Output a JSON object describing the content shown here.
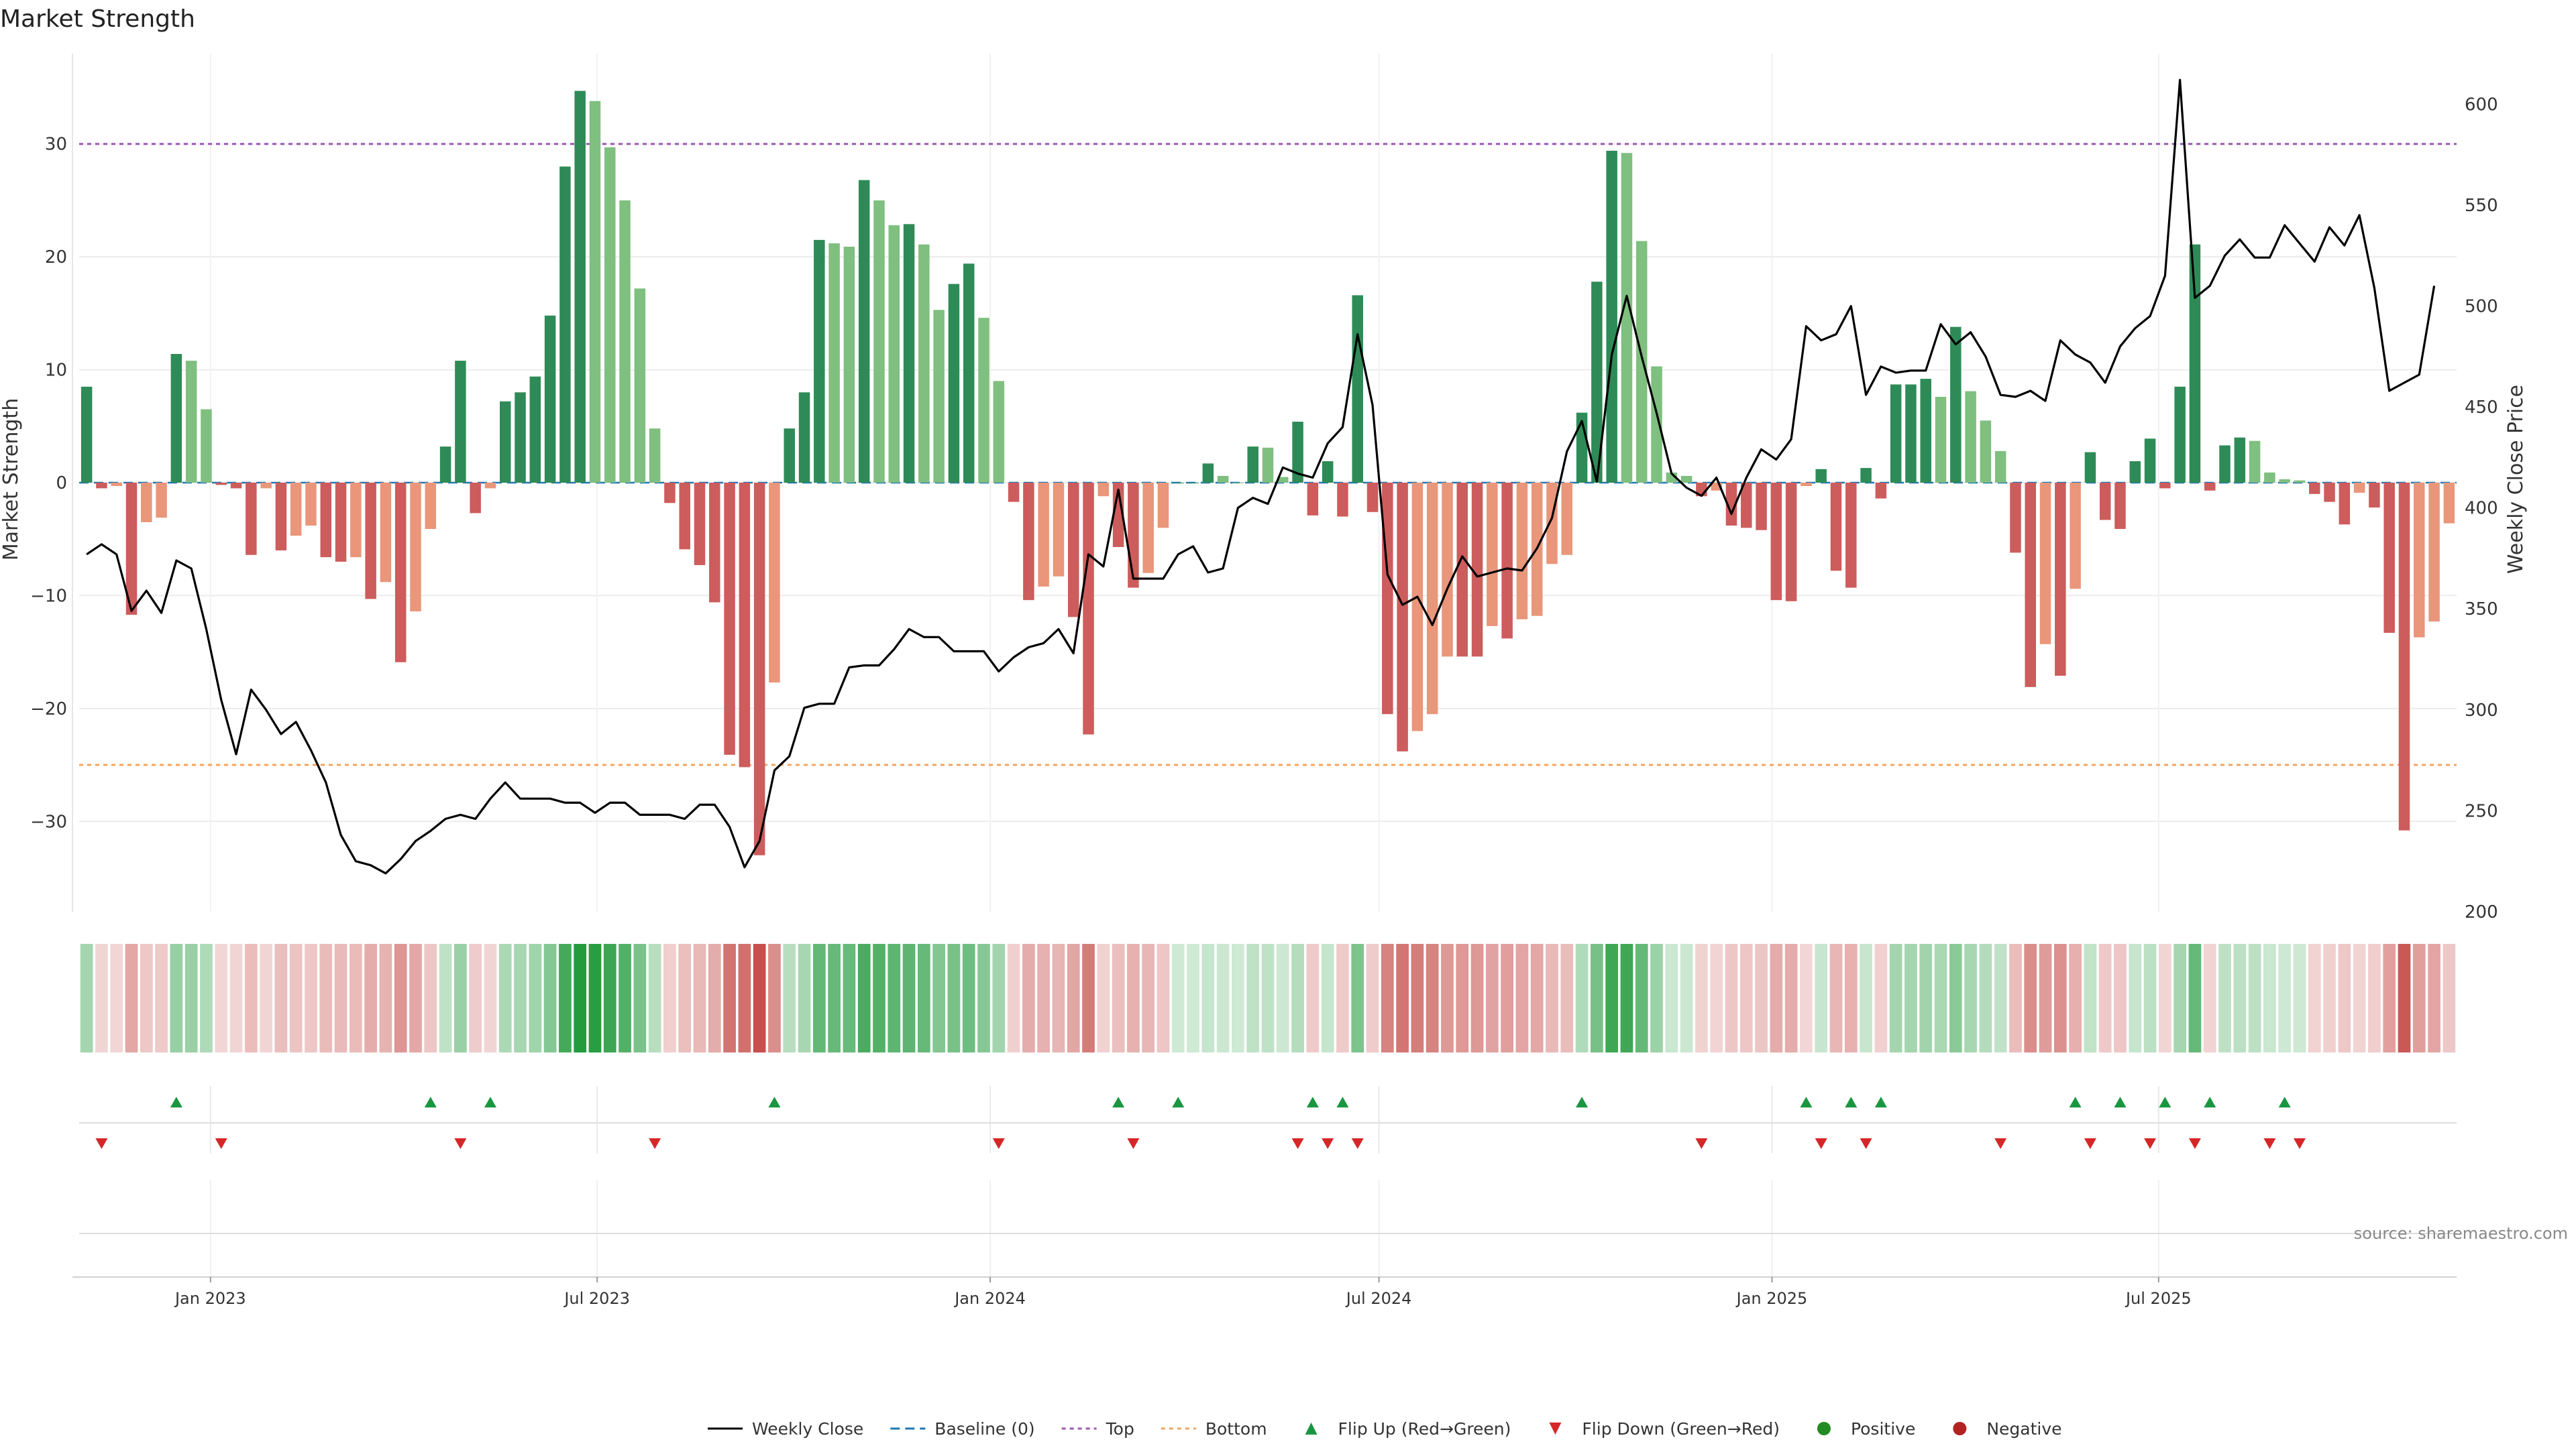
{
  "chart_data": {
    "type": "bar+line",
    "title": "Market Strength",
    "ylabel_left": "Market Strength",
    "ylabel_right": "Weekly Close Price",
    "ylim_left": [
      -38,
      38
    ],
    "ylim_right": [
      200,
      625
    ],
    "yticks_left": [
      30,
      20,
      10,
      0,
      -10,
      -20,
      -30
    ],
    "yticks_right": [
      600,
      550,
      500,
      450,
      400,
      350,
      300,
      250,
      200
    ],
    "top_line": 30,
    "bottom_line": -25,
    "baseline": 0,
    "date_start": "2022-11-04",
    "week_days": 7,
    "xticks": [
      {
        "label": "Jan 2023",
        "date": "2023-01-01"
      },
      {
        "label": "Jul 2023",
        "date": "2023-07-01"
      },
      {
        "label": "Jan 2024",
        "date": "2024-01-01"
      },
      {
        "label": "Jul 2024",
        "date": "2024-07-01"
      },
      {
        "label": "Jan 2025",
        "date": "2025-01-01"
      },
      {
        "label": "Jul 2025",
        "date": "2025-07-01"
      }
    ],
    "strength": [
      8.5,
      -0.5,
      -0.3,
      -11.7,
      -3.5,
      -3.1,
      11.4,
      10.8,
      6.5,
      -0.2,
      -0.5,
      -6.4,
      -0.5,
      -6,
      -4.7,
      -3.8,
      -6.6,
      -7,
      -6.6,
      -10.3,
      -8.8,
      -15.9,
      -11.4,
      -4.1,
      3.2,
      10.8,
      -2.7,
      -0.5,
      7.2,
      8,
      9.4,
      14.8,
      28,
      34.7,
      33.8,
      29.7,
      25,
      17.2,
      4.8,
      -1.8,
      -5.9,
      -7.3,
      -10.6,
      -24.1,
      -25.2,
      -33,
      -17.7,
      4.8,
      8,
      21.5,
      21.2,
      20.9,
      26.8,
      25,
      22.8,
      22.9,
      21.1,
      15.3,
      17.6,
      19.4,
      14.6,
      9,
      -1.7,
      -10.4,
      -9.2,
      -8.3,
      -11.9,
      -22.3,
      -1.2,
      -5.7,
      -9.3,
      -8,
      -4,
      0,
      0,
      1.7,
      0.6,
      0,
      3.2,
      3.1,
      0.5,
      5.4,
      -2.9,
      1.9,
      -3,
      16.6,
      -2.6,
      -20.5,
      -23.8,
      -22,
      -20.5,
      -15.4,
      -15.4,
      -15.4,
      -12.7,
      -13.8,
      -12.1,
      -11.8,
      -7.2,
      -6.4,
      6.2,
      17.8,
      29.4,
      29.2,
      21.4,
      10.3,
      0.9,
      0.6,
      -1.2,
      -0.7,
      -3.8,
      -4,
      -4.2,
      -10.4,
      -10.5,
      -0.3,
      1.2,
      -7.8,
      -9.3,
      1.3,
      -1.4,
      8.7,
      8.7,
      9.2,
      7.6,
      13.8,
      8.1,
      5.5,
      2.8,
      -6.2,
      -18.1,
      -14.3,
      -17.1,
      -9.4,
      2.7,
      -3.3,
      -4.1,
      1.9,
      3.9,
      -0.5,
      8.5,
      21.1,
      -0.7,
      3.3,
      4,
      3.7,
      0.9,
      0.3,
      0.2,
      -1,
      -1.7,
      -3.7,
      -0.9,
      -2.2,
      -13.3,
      -30.8,
      -13.7,
      -12.3,
      -3.6
    ],
    "close": [
      377,
      382,
      377,
      349,
      359,
      348,
      374,
      370,
      340,
      305,
      278,
      310,
      300,
      288,
      294,
      280,
      264,
      238,
      225,
      223,
      219,
      226,
      235,
      240,
      246,
      248,
      246,
      256,
      264,
      256,
      256,
      256,
      254,
      254,
      249,
      254,
      254,
      248,
      248,
      248,
      246,
      253,
      253,
      242,
      222,
      235,
      270,
      277,
      301,
      303,
      303,
      321,
      322,
      322,
      330,
      340,
      336,
      336,
      329,
      329,
      329,
      319,
      326,
      331,
      333,
      340,
      328,
      377,
      371,
      409,
      365,
      365,
      365,
      377,
      381,
      368,
      370,
      400,
      405,
      402,
      420,
      417,
      415,
      432,
      440,
      486,
      451,
      367,
      352,
      356,
      342,
      360,
      376,
      366,
      368,
      370,
      369,
      380,
      395,
      428,
      443,
      413,
      476,
      505,
      475,
      447,
      417,
      410,
      406,
      415,
      397,
      415,
      429,
      424,
      434,
      490,
      483,
      486,
      500,
      456,
      470,
      467,
      468,
      468,
      491,
      481,
      487,
      475,
      456,
      455,
      458,
      453,
      483,
      476,
      472,
      462,
      480,
      489,
      495,
      515,
      612,
      504,
      510,
      525,
      533,
      524,
      524,
      540,
      531,
      522,
      539,
      530,
      545,
      509,
      458,
      462,
      466,
      510
    ],
    "flip_up_weeks": [
      6,
      23,
      27,
      46,
      69,
      73,
      82,
      84,
      100,
      115,
      118,
      120,
      133,
      136,
      139,
      142,
      147
    ],
    "flip_down_weeks": [
      1,
      9,
      25,
      38,
      61,
      70,
      81,
      83,
      85,
      108,
      116,
      119,
      128,
      134,
      138,
      141,
      146,
      148
    ],
    "source": "source: sharemaestro.com",
    "legend_position": "bottom-center",
    "legend": [
      "Weekly Close",
      "Baseline (0)",
      "Top",
      "Bottom",
      "Flip Up (Red→Green)",
      "Flip Down (Green→Red)",
      "Positive",
      "Negative"
    ]
  },
  "colors": {
    "pos_strong": "#2e8b57",
    "pos_light": "#7fbf7f",
    "neg_strong": "#cd5c5c",
    "neg_light": "#e9967a",
    "close_line": "#000000",
    "baseline": "#1f77b4",
    "top": "#9b59b6",
    "bottom": "#f4a460",
    "flip_up": "#1a9641",
    "flip_down": "#d62728",
    "positive_dot": "#228b22",
    "negative_dot": "#b22222"
  }
}
